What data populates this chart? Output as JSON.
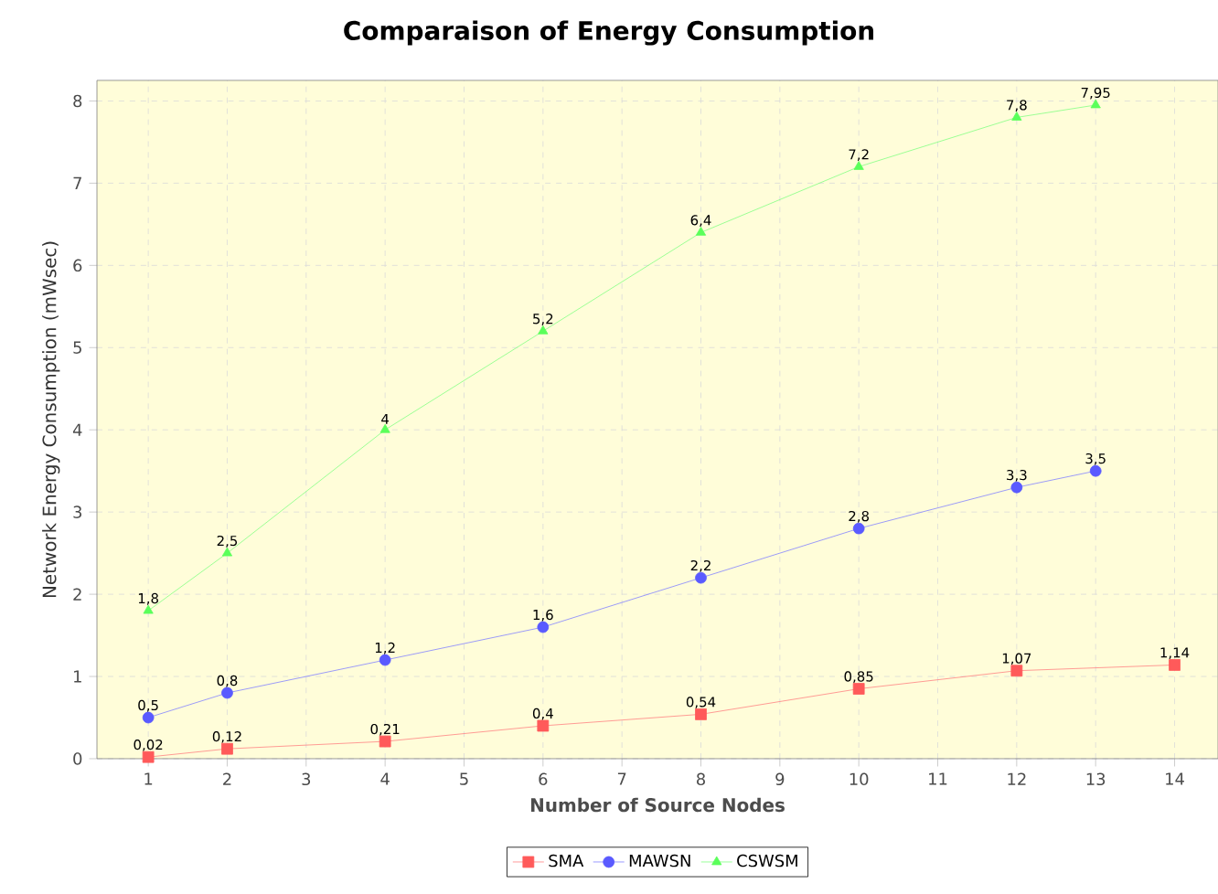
{
  "chart_data": {
    "type": "line",
    "title": "Comparaison of Energy Consumption",
    "xlabel": "Number of Source Nodes",
    "ylabel": "Network Energy Consumption (mWsec)",
    "xlim": [
      0.35,
      14.55
    ],
    "xticks": [
      1,
      2,
      3,
      4,
      5,
      6,
      7,
      8,
      9,
      10,
      11,
      12,
      13,
      14
    ],
    "ylim": [
      0,
      8.25
    ],
    "yticks": [
      0,
      1,
      2,
      3,
      4,
      5,
      6,
      7,
      8
    ],
    "grid": true,
    "legend": "bottom",
    "series": [
      {
        "name": "SMA",
        "color": "#ff5a5a",
        "marker": "square",
        "x": [
          1,
          2,
          4,
          6,
          8,
          10,
          12,
          14
        ],
        "values": [
          0.02,
          0.12,
          0.21,
          0.4,
          0.54,
          0.85,
          1.07,
          1.14
        ],
        "value_labels": [
          "0,02",
          "0,12",
          "0,21",
          "0,4",
          "0,54",
          "0,85",
          "1,07",
          "1,14"
        ]
      },
      {
        "name": "MAWSN",
        "color": "#5a5aff",
        "marker": "circle",
        "x": [
          1,
          2,
          4,
          6,
          8,
          10,
          12,
          13
        ],
        "values": [
          0.5,
          0.8,
          1.2,
          1.6,
          2.2,
          2.8,
          3.3,
          3.5
        ],
        "value_labels": [
          "0,5",
          "0,8",
          "1,2",
          "1,6",
          "2,2",
          "2,8",
          "3,3",
          "3,5"
        ]
      },
      {
        "name": "CSWSM",
        "color": "#5aff5a",
        "marker": "triangle",
        "x": [
          1,
          2,
          4,
          6,
          8,
          10,
          12,
          13
        ],
        "values": [
          1.8,
          2.5,
          4,
          5.2,
          6.4,
          7.2,
          7.8,
          7.95
        ],
        "value_labels": [
          "1,8",
          "2,5",
          "4",
          "5,2",
          "6,4",
          "7,2",
          "7,8",
          "7,95"
        ]
      }
    ]
  }
}
